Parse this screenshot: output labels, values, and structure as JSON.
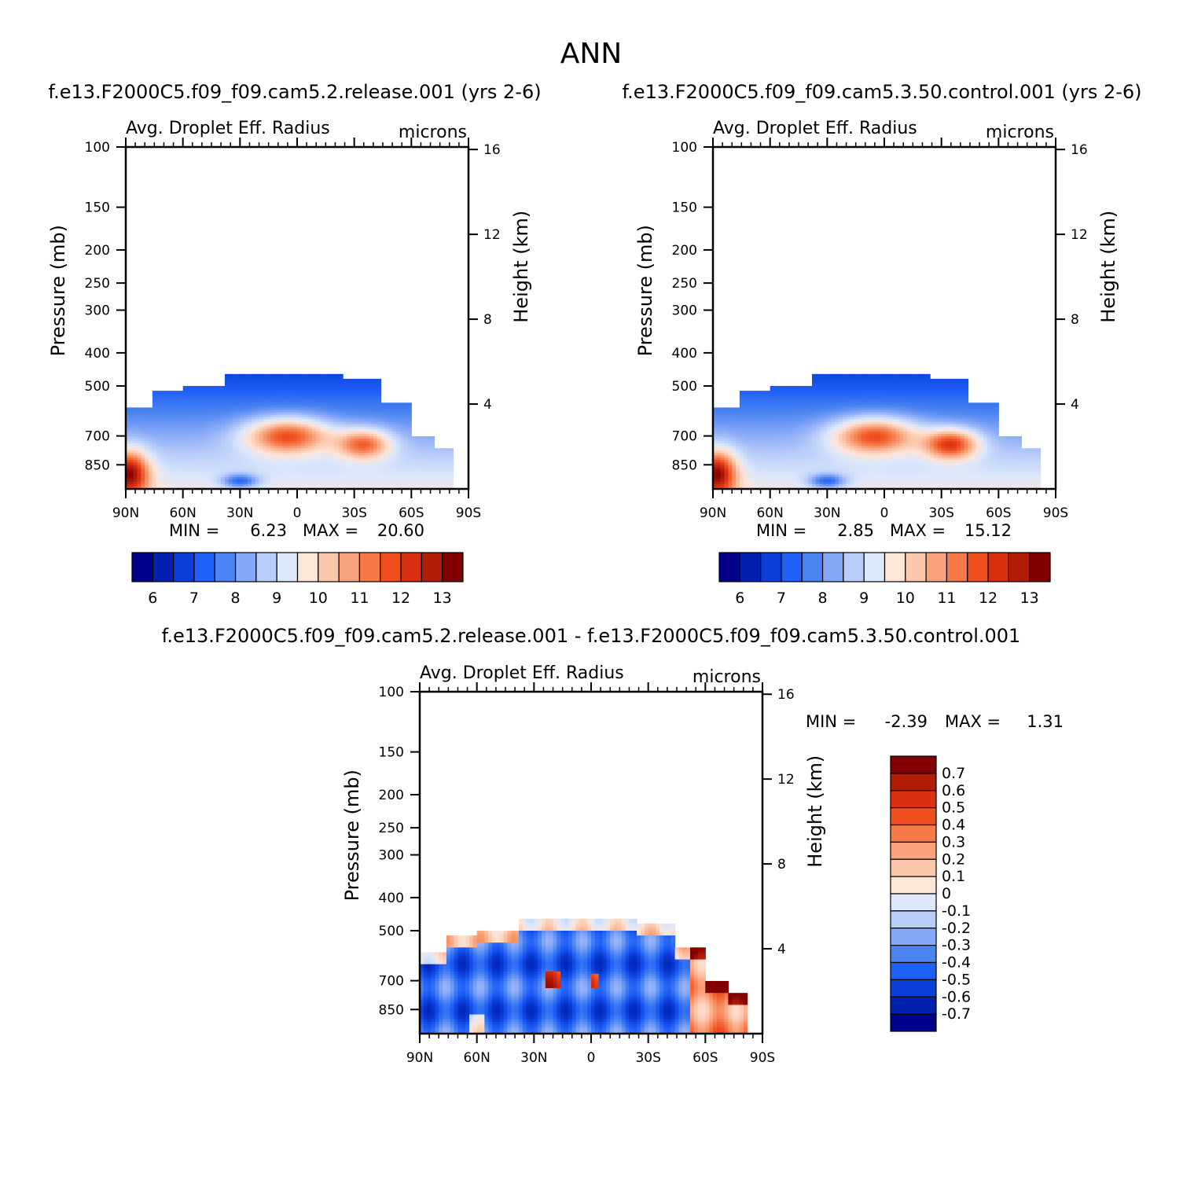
{
  "page_title": "ANN",
  "colors": {
    "diverging": [
      "#00008b",
      "#0020b0",
      "#0b3fd8",
      "#2060f8",
      "#4a84f0",
      "#86a8f8",
      "#b8cdf8",
      "#dde8fc",
      "#fde5d8",
      "#fcc8ad",
      "#f9a27c",
      "#f57a48",
      "#f05020",
      "#d83010",
      "#b01c08",
      "#820000"
    ],
    "field_low": "#1c55e8",
    "field_mid": "#fde5d8",
    "field_high": "#8c0a00",
    "zero": "#ffffff"
  },
  "chart_data": [
    {
      "type": "heatmap",
      "id": "case1",
      "title": "f.e13.F2000C5.f09_f09.cam5.2.release.001  (yrs 2-6)",
      "left_string": "Avg. Droplet Eff. Radius",
      "right_string": "microns",
      "xlabel": "",
      "ylabel": "Pressure (mb)",
      "ylabel_right": "Height (km)",
      "x_ticks": [
        "90N",
        "60N",
        "30N",
        "0",
        "30S",
        "60S",
        "90S"
      ],
      "x_range": [
        90,
        -90
      ],
      "y_ticks": [
        "100",
        "150",
        "200",
        "250",
        "300",
        "400",
        "500",
        "700",
        "850"
      ],
      "y_tick_values": [
        100,
        150,
        200,
        250,
        300,
        400,
        500,
        700,
        850
      ],
      "y_range": [
        100,
        1000
      ],
      "y_scale": "log",
      "right_ticks": [
        "16",
        "12",
        "8",
        "4"
      ],
      "right_tick_values": [
        16,
        12,
        8,
        4
      ],
      "min_label": "MIN =",
      "min_value": "6.23",
      "max_label": "MAX =",
      "max_value": "20.60",
      "colorbar_labels": [
        "6",
        "7",
        "8",
        "9",
        "10",
        "11",
        "12",
        "13"
      ],
      "field_range": [
        6,
        13.5
      ]
    },
    {
      "type": "heatmap",
      "id": "case2",
      "title": "f.e13.F2000C5.f09_f09.cam5.3.50.control.001  (yrs 2-6)",
      "left_string": "Avg. Droplet Eff. Radius",
      "right_string": "microns",
      "xlabel": "",
      "ylabel": "Pressure (mb)",
      "ylabel_right": "Height (km)",
      "x_ticks": [
        "90N",
        "60N",
        "30N",
        "0",
        "30S",
        "60S",
        "90S"
      ],
      "x_range": [
        90,
        -90
      ],
      "y_ticks": [
        "100",
        "150",
        "200",
        "250",
        "300",
        "400",
        "500",
        "700",
        "850"
      ],
      "y_tick_values": [
        100,
        150,
        200,
        250,
        300,
        400,
        500,
        700,
        850
      ],
      "y_range": [
        100,
        1000
      ],
      "y_scale": "log",
      "right_ticks": [
        "16",
        "12",
        "8",
        "4"
      ],
      "right_tick_values": [
        16,
        12,
        8,
        4
      ],
      "min_label": "MIN =",
      "min_value": "2.85",
      "max_label": "MAX =",
      "max_value": "15.12",
      "colorbar_labels": [
        "6",
        "7",
        "8",
        "9",
        "10",
        "11",
        "12",
        "13"
      ],
      "field_range": [
        6,
        13.5
      ]
    },
    {
      "type": "heatmap",
      "id": "diff",
      "title": "f.e13.F2000C5.f09_f09.cam5.2.release.001 - f.e13.F2000C5.f09_f09.cam5.3.50.control.001",
      "left_string": "Avg. Droplet Eff. Radius",
      "right_string": "microns",
      "xlabel": "",
      "ylabel": "Pressure (mb)",
      "ylabel_right": "Height (km)",
      "x_ticks": [
        "90N",
        "60N",
        "30N",
        "0",
        "30S",
        "60S",
        "90S"
      ],
      "x_range": [
        90,
        -90
      ],
      "y_ticks": [
        "100",
        "150",
        "200",
        "250",
        "300",
        "400",
        "500",
        "700",
        "850"
      ],
      "y_tick_values": [
        100,
        150,
        200,
        250,
        300,
        400,
        500,
        700,
        850
      ],
      "y_range": [
        100,
        1000
      ],
      "y_scale": "log",
      "right_ticks": [
        "16",
        "12",
        "8",
        "4"
      ],
      "right_tick_values": [
        16,
        12,
        8,
        4
      ],
      "min_label": "MIN =",
      "min_value": "-2.39",
      "max_label": "MAX =",
      "max_value": "1.31",
      "colorbar_labels": [
        "0.7",
        "0.6",
        "0.5",
        "0.4",
        "0.3",
        "0.2",
        "0.1",
        "0",
        "-0.1",
        "-0.2",
        "-0.3",
        "-0.4",
        "-0.5",
        "-0.6",
        "-0.7"
      ],
      "field_range": [
        -0.8,
        0.8
      ]
    }
  ]
}
